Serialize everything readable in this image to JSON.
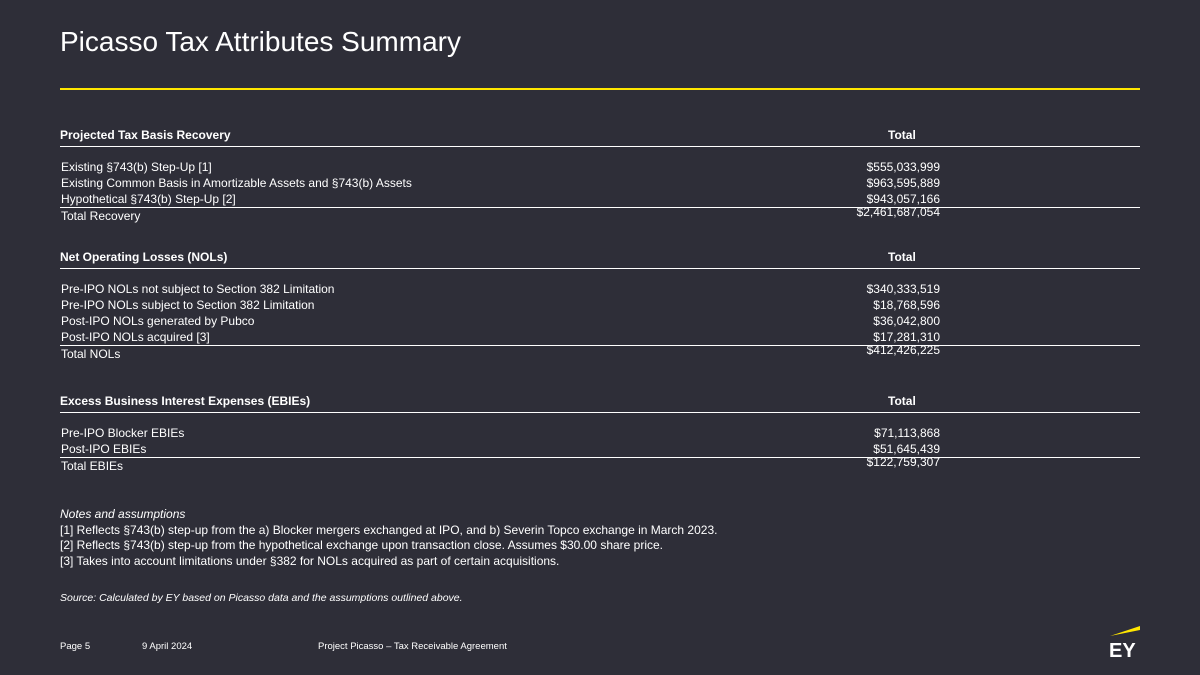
{
  "title": "Picasso Tax Attributes Summary",
  "sections": [
    {
      "header": "Projected Tax Basis Recovery",
      "total_header": "Total",
      "rows": [
        {
          "label": "Existing §743(b) Step-Up [1]",
          "value": "$555,033,999"
        },
        {
          "label": "Existing Common Basis in Amortizable Assets and §743(b) Assets",
          "value": "$963,595,889"
        },
        {
          "label": "Hypothetical §743(b) Step-Up [2]",
          "value": "$943,057,166"
        }
      ],
      "total": {
        "label": "Total Recovery",
        "value": "$2,461,687,054"
      }
    },
    {
      "header": "Net Operating Losses (NOLs)",
      "total_header": "Total",
      "rows": [
        {
          "label": "Pre-IPO NOLs not subject to Section 382 Limitation",
          "value": "$340,333,519"
        },
        {
          "label": "Pre-IPO NOLs subject to Section 382 Limitation",
          "value": "$18,768,596"
        },
        {
          "label": "Post-IPO NOLs generated by Pubco",
          "value": "$36,042,800"
        },
        {
          "label": "Post-IPO NOLs acquired [3]",
          "value": "$17,281,310"
        }
      ],
      "total": {
        "label": "Total NOLs",
        "value": "$412,426,225"
      }
    },
    {
      "header": "Excess Business Interest Expenses (EBIEs)",
      "total_header": "Total",
      "rows": [
        {
          "label": "Pre-IPO Blocker EBIEs",
          "value": "$71,113,868"
        },
        {
          "label": "Post-IPO EBIEs",
          "value": "$51,645,439"
        }
      ],
      "total": {
        "label": "Total EBIEs",
        "value": "$122,759,307"
      }
    }
  ],
  "notes": {
    "heading": "Notes and assumptions",
    "items": [
      "[1] Reflects §743(b) step-up from the a) Blocker mergers exchanged at IPO, and b) Severin Topco exchange in March 2023.",
      "[2] Reflects §743(b) step-up from the hypothetical exchange upon transaction close. Assumes $30.00 share price.",
      "[3] Takes into account limitations under §382 for NOLs acquired as part of certain acquisitions."
    ]
  },
  "source": "Source: Calculated by EY based on Picasso data and the assumptions outlined above.",
  "footer": {
    "page": "Page 5",
    "date": "9 April 2024",
    "project": "Project Picasso – Tax Receivable Agreement"
  },
  "logo": {
    "text": "EY",
    "accent": "#ffe600"
  },
  "colors": {
    "background": "#2e2e38",
    "accent": "#ffe600",
    "text": "#ffffff"
  }
}
